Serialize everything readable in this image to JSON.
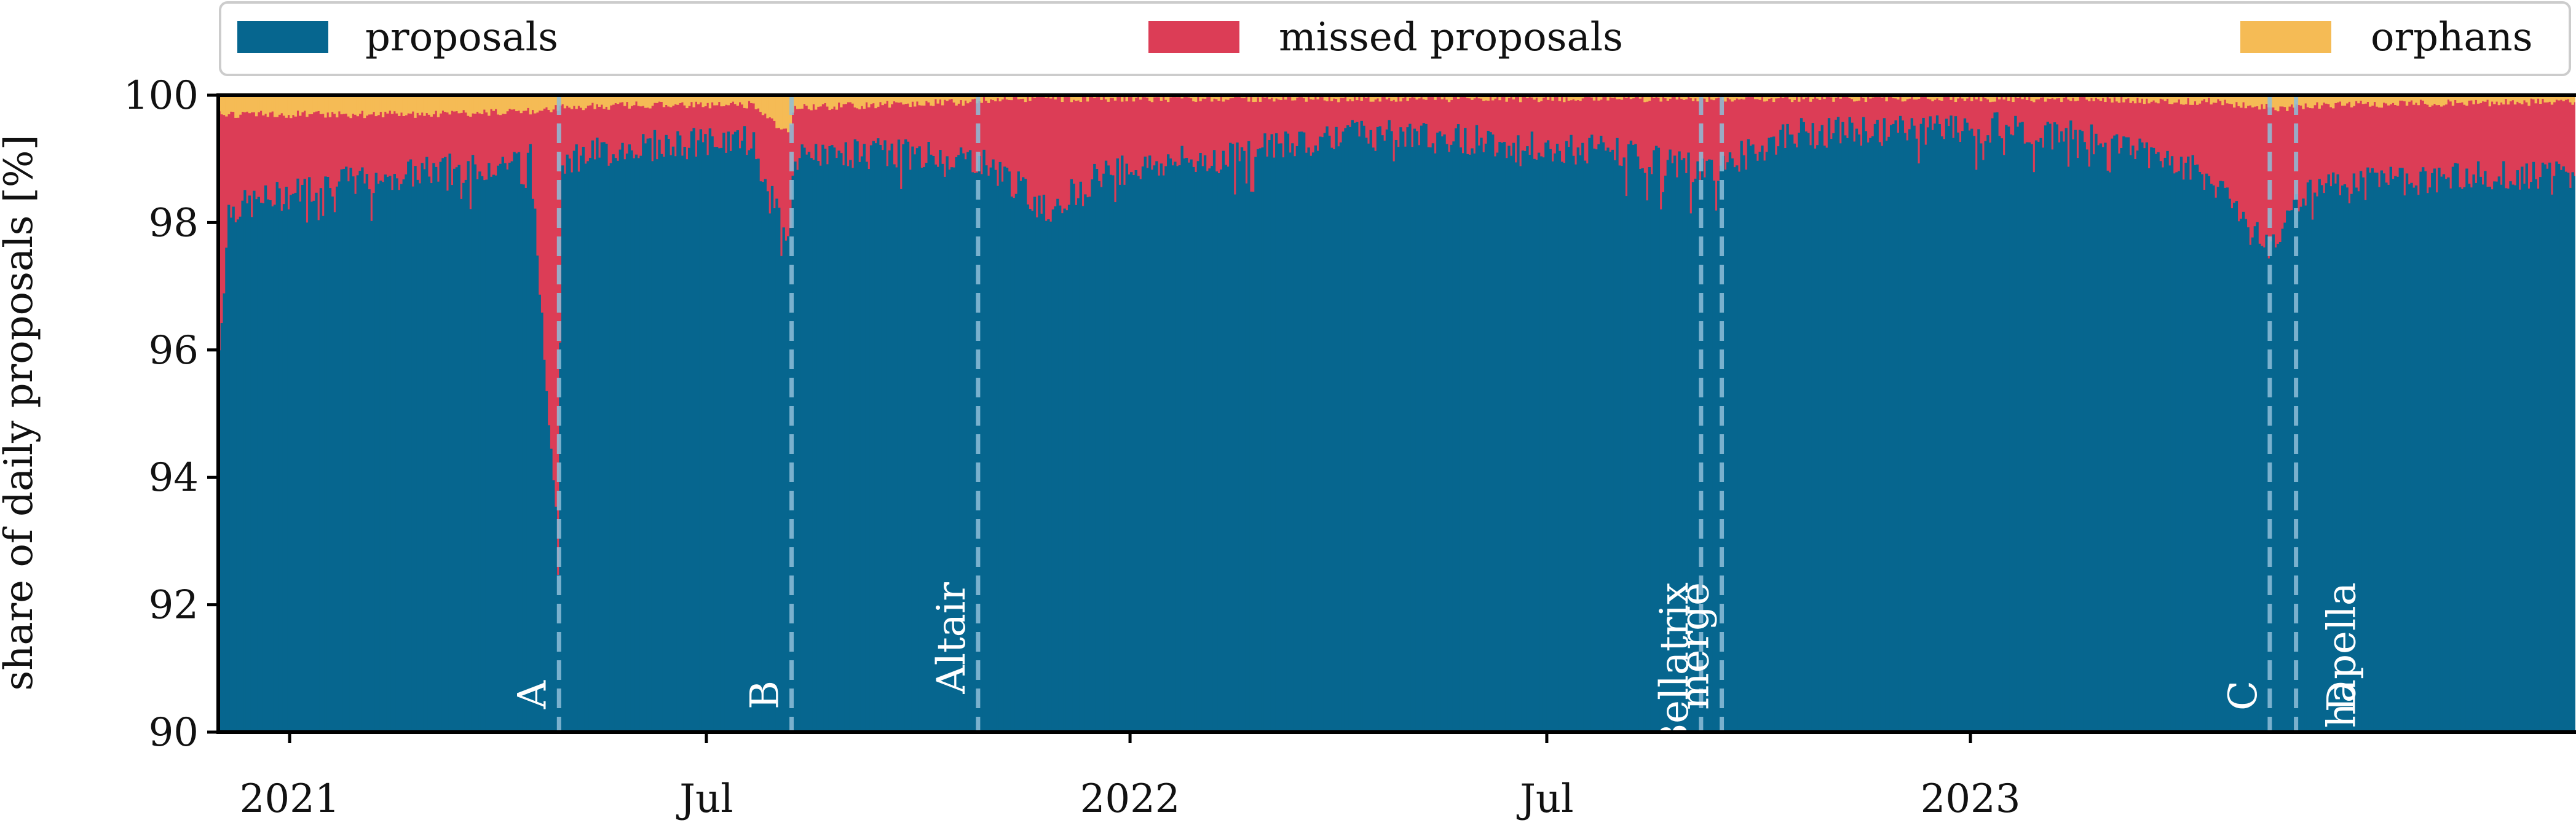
{
  "chart_data": {
    "type": "area",
    "stacked": true,
    "title": "",
    "xlabel": "",
    "ylabel": "share of daily proposals [%]",
    "ylim": [
      90,
      100
    ],
    "xlim": [
      "2020-12-01",
      "2023-09-21"
    ],
    "y_ticks": [
      90,
      92,
      94,
      96,
      98,
      100
    ],
    "x_ticks": [
      {
        "date": "2021-01-01",
        "label": "2021"
      },
      {
        "date": "2021-07-01",
        "label": "Jul"
      },
      {
        "date": "2022-01-01",
        "label": "2022"
      },
      {
        "date": "2022-07-01",
        "label": "Jul"
      },
      {
        "date": "2023-01-01",
        "label": "2023"
      }
    ],
    "grid": false,
    "legend_position": "top",
    "colors": {
      "proposals": "#06668f",
      "missed proposals": "#dc3d56",
      "orphans": "#f5bb55"
    },
    "series": [
      {
        "name": "proposals",
        "color": "#06668f"
      },
      {
        "name": "missed proposals",
        "color": "#dc3d56"
      },
      {
        "name": "orphans",
        "color": "#f5bb55"
      }
    ],
    "daily_profile": [
      {
        "date": "2020-12-01",
        "proposals": 96.0,
        "orphans": 0.3
      },
      {
        "date": "2020-12-05",
        "proposals": 98.2,
        "orphans": 0.3
      },
      {
        "date": "2021-01-15",
        "proposals": 98.6,
        "orphans": 0.3
      },
      {
        "date": "2021-03-01",
        "proposals": 98.8,
        "orphans": 0.3
      },
      {
        "date": "2021-04-15",
        "proposals": 99.0,
        "orphans": 0.25
      },
      {
        "date": "2021-04-27",
        "proposals": 93.1,
        "orphans": 0.2
      },
      {
        "date": "2021-04-29",
        "proposals": 99.0,
        "orphans": 0.2
      },
      {
        "date": "2021-06-01",
        "proposals": 99.2,
        "orphans": 0.15
      },
      {
        "date": "2021-07-20",
        "proposals": 99.3,
        "orphans": 0.15
      },
      {
        "date": "2021-08-05",
        "proposals": 97.6,
        "orphans": 0.6
      },
      {
        "date": "2021-08-08",
        "proposals": 99.0,
        "orphans": 0.2
      },
      {
        "date": "2021-09-15",
        "proposals": 99.1,
        "orphans": 0.15
      },
      {
        "date": "2021-10-25",
        "proposals": 99.0,
        "orphans": 0.1
      },
      {
        "date": "2021-11-05",
        "proposals": 98.8,
        "orphans": 0.05
      },
      {
        "date": "2021-11-25",
        "proposals": 98.2,
        "orphans": 0.05
      },
      {
        "date": "2021-12-20",
        "proposals": 98.8,
        "orphans": 0.05
      },
      {
        "date": "2022-02-01",
        "proposals": 99.0,
        "orphans": 0.05
      },
      {
        "date": "2022-04-01",
        "proposals": 99.4,
        "orphans": 0.05
      },
      {
        "date": "2022-06-01",
        "proposals": 99.3,
        "orphans": 0.05
      },
      {
        "date": "2022-08-01",
        "proposals": 99.1,
        "orphans": 0.05
      },
      {
        "date": "2022-09-06",
        "proposals": 98.8,
        "orphans": 0.05
      },
      {
        "date": "2022-09-15",
        "proposals": 98.9,
        "orphans": 0.05
      },
      {
        "date": "2022-10-15",
        "proposals": 99.4,
        "orphans": 0.05
      },
      {
        "date": "2023-01-15",
        "proposals": 99.5,
        "orphans": 0.05
      },
      {
        "date": "2023-03-15",
        "proposals": 99.2,
        "orphans": 0.08
      },
      {
        "date": "2023-04-15",
        "proposals": 98.7,
        "orphans": 0.1
      },
      {
        "date": "2023-05-12",
        "proposals": 97.6,
        "orphans": 0.2
      },
      {
        "date": "2023-05-20",
        "proposals": 98.3,
        "orphans": 0.2
      },
      {
        "date": "2023-06-05",
        "proposals": 98.6,
        "orphans": 0.15
      },
      {
        "date": "2023-09-21",
        "proposals": 98.8,
        "orphans": 0.1
      }
    ],
    "events": [
      {
        "label": "A",
        "date": "2021-04-28"
      },
      {
        "label": "B",
        "date": "2021-08-07"
      },
      {
        "label": "Altair",
        "date": "2021-10-27"
      },
      {
        "label": "Bellatrix",
        "date": "2022-09-06"
      },
      {
        "label": "merge",
        "date": "2022-09-15"
      },
      {
        "label": "C",
        "date": "2023-05-11"
      },
      {
        "label": "Shapella",
        "date": "2023-04-12"
      },
      {
        "label": "D",
        "date": "2023-05-15"
      }
    ]
  }
}
